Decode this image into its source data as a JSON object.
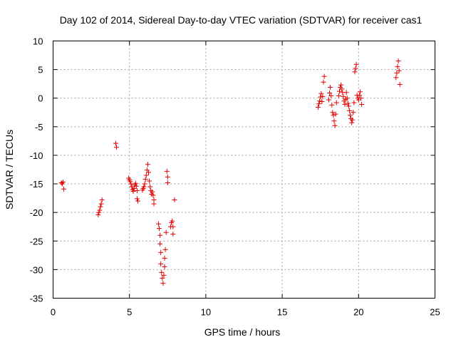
{
  "chart_data": {
    "type": "scatter",
    "title": "Day 102 of 2014, Sidereal Day-to-day VTEC variation (SDTVAR) for receiver cas1",
    "xlabel": "GPS time / hours",
    "ylabel": "SDTVAR / TECUs",
    "xlim": [
      0,
      25
    ],
    "ylim": [
      -35,
      10
    ],
    "xticks": [
      0,
      5,
      10,
      15,
      20,
      25
    ],
    "yticks": [
      10,
      5,
      0,
      -5,
      -10,
      -15,
      -20,
      -25,
      -30,
      -35
    ],
    "grid": true,
    "marker": "plus",
    "color": "#e00000",
    "series": [
      {
        "name": "SDTVAR",
        "points": [
          [
            0.55,
            -14.8
          ],
          [
            0.6,
            -15.0
          ],
          [
            0.65,
            -14.7
          ],
          [
            0.7,
            -15.9
          ],
          [
            2.95,
            -20.4
          ],
          [
            3.0,
            -20.0
          ],
          [
            3.05,
            -19.6
          ],
          [
            3.1,
            -19.0
          ],
          [
            3.15,
            -18.5
          ],
          [
            3.2,
            -17.8
          ],
          [
            4.1,
            -7.9
          ],
          [
            4.15,
            -8.6
          ],
          [
            4.95,
            -14.0
          ],
          [
            5.0,
            -14.3
          ],
          [
            5.05,
            -14.6
          ],
          [
            5.1,
            -15.0
          ],
          [
            5.15,
            -15.5
          ],
          [
            5.2,
            -16.0
          ],
          [
            5.25,
            -16.3
          ],
          [
            5.3,
            -15.8
          ],
          [
            5.35,
            -15.2
          ],
          [
            5.4,
            -14.9
          ],
          [
            5.45,
            -15.4
          ],
          [
            5.5,
            -16.2
          ],
          [
            5.5,
            -17.6
          ],
          [
            5.55,
            -18.0
          ],
          [
            5.85,
            -16.1
          ],
          [
            5.9,
            -15.8
          ],
          [
            5.95,
            -15.5
          ],
          [
            6.0,
            -15.0
          ],
          [
            6.05,
            -14.2
          ],
          [
            6.1,
            -13.5
          ],
          [
            6.15,
            -12.6
          ],
          [
            6.2,
            -11.6
          ],
          [
            6.25,
            -13.0
          ],
          [
            6.3,
            -14.5
          ],
          [
            6.35,
            -15.5
          ],
          [
            6.4,
            -16.2
          ],
          [
            6.45,
            -16.8
          ],
          [
            6.5,
            -16.4
          ],
          [
            6.55,
            -17.0
          ],
          [
            6.6,
            -17.8
          ],
          [
            6.6,
            -18.5
          ],
          [
            6.9,
            -22.0
          ],
          [
            6.95,
            -22.8
          ],
          [
            7.0,
            -24.0
          ],
          [
            7.0,
            -25.5
          ],
          [
            7.05,
            -27.0
          ],
          [
            7.05,
            -29.0
          ],
          [
            7.1,
            -30.5
          ],
          [
            7.15,
            -31.5
          ],
          [
            7.2,
            -32.4
          ],
          [
            7.25,
            -31.0
          ],
          [
            7.3,
            -29.5
          ],
          [
            7.3,
            -28.0
          ],
          [
            7.35,
            -26.5
          ],
          [
            7.4,
            -23.5
          ],
          [
            7.45,
            -12.8
          ],
          [
            7.5,
            -13.8
          ],
          [
            7.5,
            -14.8
          ],
          [
            7.7,
            -22.5
          ],
          [
            7.75,
            -21.8
          ],
          [
            7.8,
            -21.5
          ],
          [
            7.85,
            -22.5
          ],
          [
            7.85,
            -23.8
          ],
          [
            7.95,
            -17.8
          ],
          [
            17.35,
            -1.6
          ],
          [
            17.4,
            -1.0
          ],
          [
            17.45,
            -0.5
          ],
          [
            17.5,
            0.2
          ],
          [
            17.55,
            0.8
          ],
          [
            17.6,
            -0.6
          ],
          [
            17.65,
            0.3
          ],
          [
            17.7,
            2.8
          ],
          [
            17.75,
            3.8
          ],
          [
            18.05,
            -0.3
          ],
          [
            18.1,
            0.9
          ],
          [
            18.15,
            1.9
          ],
          [
            18.2,
            0.4
          ],
          [
            18.25,
            -1.2
          ],
          [
            18.3,
            -2.5
          ],
          [
            18.35,
            -3.0
          ],
          [
            18.4,
            -4.0
          ],
          [
            18.45,
            -4.8
          ],
          [
            18.5,
            -2.8
          ],
          [
            18.55,
            -0.8
          ],
          [
            18.7,
            0.4
          ],
          [
            18.75,
            1.2
          ],
          [
            18.8,
            1.9
          ],
          [
            18.85,
            2.3
          ],
          [
            18.9,
            1.6
          ],
          [
            18.95,
            1.0
          ],
          [
            19.0,
            0.3
          ],
          [
            19.05,
            -0.5
          ],
          [
            19.1,
            -1.1
          ],
          [
            19.15,
            -0.2
          ],
          [
            19.2,
            1.0
          ],
          [
            19.25,
            0.0
          ],
          [
            19.3,
            -0.9
          ],
          [
            19.35,
            -1.4
          ],
          [
            19.4,
            -2.2
          ],
          [
            19.45,
            -3.0
          ],
          [
            19.5,
            -3.6
          ],
          [
            19.55,
            -4.3
          ],
          [
            19.6,
            -3.8
          ],
          [
            19.65,
            -2.5
          ],
          [
            19.7,
            -0.8
          ],
          [
            19.75,
            4.6
          ],
          [
            19.8,
            5.2
          ],
          [
            19.85,
            5.9
          ],
          [
            19.9,
            0.5
          ],
          [
            19.95,
            0.0
          ],
          [
            20.0,
            -0.3
          ],
          [
            20.05,
            0.5
          ],
          [
            20.1,
            1.1
          ],
          [
            20.15,
            0.0
          ],
          [
            20.2,
            -1.1
          ],
          [
            22.45,
            3.6
          ],
          [
            22.5,
            4.4
          ],
          [
            22.55,
            5.5
          ],
          [
            22.6,
            6.5
          ],
          [
            22.65,
            4.8
          ],
          [
            22.7,
            2.4
          ]
        ]
      }
    ]
  }
}
